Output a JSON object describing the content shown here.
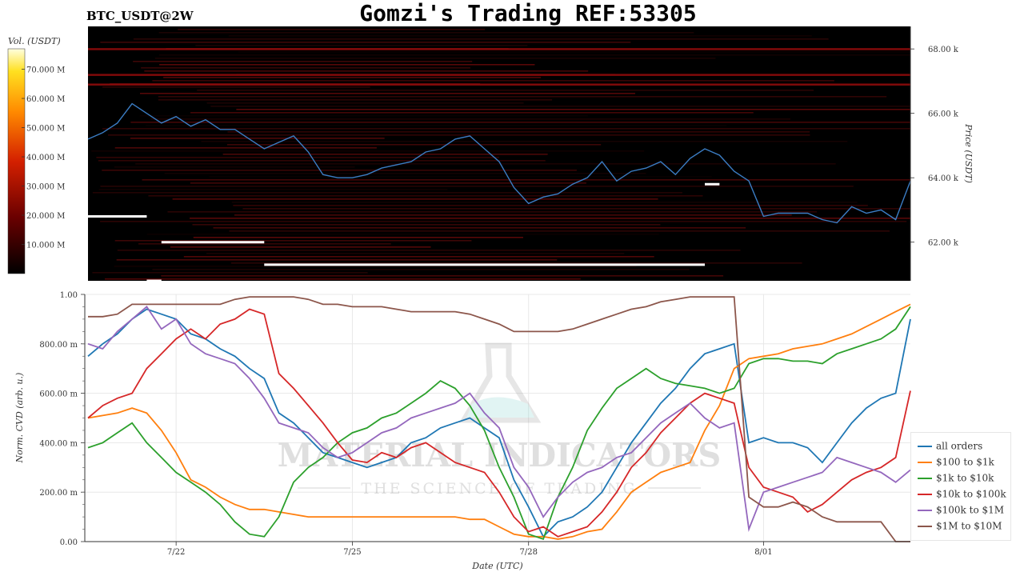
{
  "header": {
    "title": "Gomzi's Trading REF:53305",
    "symbol": "BTC_USDT@2W"
  },
  "watermark": {
    "line1": "MATERIAL INDICATORS",
    "line2": "THE SCIENCE OF TRADING"
  },
  "colors": {
    "price_line": "#3b7dc4",
    "heatmap_bg": "#000000",
    "wall": "#ffffff"
  },
  "chart_data": [
    {
      "type": "heatmap",
      "ylabel": "Price (USDT)",
      "ylim": [
        60800,
        68700
      ],
      "y_ticks": [
        {
          "value": 62000,
          "label": "62.00 k"
        },
        {
          "value": 64000,
          "label": "64.00 k"
        },
        {
          "value": 66000,
          "label": "66.00 k"
        },
        {
          "value": 68000,
          "label": "68.00 k"
        }
      ],
      "colorbar": {
        "label": "Vol. (USDT)",
        "range": [
          0,
          77000000
        ],
        "ticks": [
          {
            "value": 10000000,
            "label": "10.000 M"
          },
          {
            "value": 20000000,
            "label": "20.000 M"
          },
          {
            "value": 30000000,
            "label": "30.000 M"
          },
          {
            "value": 40000000,
            "label": "40.000 M"
          },
          {
            "value": 50000000,
            "label": "50.000 M"
          },
          {
            "value": 60000000,
            "label": "60.000 M"
          },
          {
            "value": 70000000,
            "label": "70.000 M"
          }
        ]
      },
      "price_series": {
        "x": [
          "07-20 12:00",
          "07-20 18:00",
          "07-21 00:00",
          "07-21 06:00",
          "07-21 12:00",
          "07-21 18:00",
          "07-22 00:00",
          "07-22 06:00",
          "07-22 12:00",
          "07-22 18:00",
          "07-23 00:00",
          "07-23 06:00",
          "07-23 12:00",
          "07-23 18:00",
          "07-24 00:00",
          "07-24 06:00",
          "07-24 12:00",
          "07-24 18:00",
          "07-25 00:00",
          "07-25 06:00",
          "07-25 12:00",
          "07-25 18:00",
          "07-26 00:00",
          "07-26 06:00",
          "07-26 12:00",
          "07-26 18:00",
          "07-27 00:00",
          "07-27 06:00",
          "07-27 12:00",
          "07-27 18:00",
          "07-28 00:00",
          "07-28 06:00",
          "07-28 12:00",
          "07-28 18:00",
          "07-29 00:00",
          "07-29 06:00",
          "07-29 12:00",
          "07-29 18:00",
          "07-30 00:00",
          "07-30 06:00",
          "07-30 12:00",
          "07-30 18:00",
          "07-31 00:00",
          "07-31 06:00",
          "07-31 12:00",
          "07-31 18:00",
          "08-01 00:00",
          "08-01 06:00",
          "08-01 12:00",
          "08-01 18:00",
          "08-02 00:00",
          "08-02 06:00",
          "08-02 12:00",
          "08-02 18:00",
          "08-03 00:00",
          "08-03 06:00",
          "08-03 12:00"
        ],
        "y": [
          65200,
          65400,
          65700,
          66300,
          66000,
          65700,
          65900,
          65600,
          65800,
          65500,
          65500,
          65200,
          64900,
          65100,
          65300,
          64800,
          64100,
          64000,
          64000,
          64100,
          64300,
          64400,
          64500,
          64800,
          64900,
          65200,
          65300,
          64900,
          64500,
          63700,
          63200,
          63400,
          63500,
          63800,
          64000,
          64500,
          63900,
          64200,
          64300,
          64500,
          64100,
          64600,
          64900,
          64700,
          64200,
          63900,
          62800,
          62900,
          62900,
          62900,
          62700,
          62600,
          63100,
          62900,
          63000,
          62700,
          63900
        ]
      },
      "walls": [
        {
          "start": "07-20 12:00",
          "end": "07-21 12:00",
          "price": 62800
        },
        {
          "start": "07-21 12:00",
          "end": "07-21 18:00",
          "price": 60800
        },
        {
          "start": "07-21 18:00",
          "end": "07-23 12:00",
          "price": 62000
        },
        {
          "start": "07-23 12:00",
          "end": "07-31 00:00",
          "price": 61300
        },
        {
          "start": "07-31 00:00",
          "end": "07-31 06:00",
          "price": 63800
        }
      ]
    },
    {
      "type": "line",
      "xlabel": "Date (UTC)",
      "ylabel": "Norm. CVD (arb. u.)",
      "ylim": [
        0,
        1
      ],
      "y_ticks": [
        {
          "value": 0,
          "label": "0.00"
        },
        {
          "value": 0.2,
          "label": "200.00 m"
        },
        {
          "value": 0.4,
          "label": "400.00 m"
        },
        {
          "value": 0.6,
          "label": "600.00 m"
        },
        {
          "value": 0.8,
          "label": "800.00 m"
        },
        {
          "value": 1,
          "label": "1.00"
        }
      ],
      "x_ticks": [
        {
          "value": "07-22 00:00",
          "label": "7/22"
        },
        {
          "value": "07-25 00:00",
          "label": "7/25"
        },
        {
          "value": "07-28 00:00",
          "label": "7/28"
        },
        {
          "value": "08-01 00:00",
          "label": "8/01"
        }
      ],
      "series": [
        {
          "name": "all orders",
          "color": "#1f77b4",
          "y": [
            0.75,
            0.8,
            0.84,
            0.9,
            0.94,
            0.92,
            0.9,
            0.84,
            0.82,
            0.78,
            0.75,
            0.7,
            0.66,
            0.52,
            0.48,
            0.42,
            0.36,
            0.34,
            0.32,
            0.3,
            0.32,
            0.34,
            0.4,
            0.42,
            0.46,
            0.48,
            0.5,
            0.46,
            0.42,
            0.25,
            0.14,
            0.02,
            0.08,
            0.1,
            0.14,
            0.2,
            0.3,
            0.4,
            0.48,
            0.56,
            0.62,
            0.7,
            0.76,
            0.78,
            0.8,
            0.4,
            0.42,
            0.4,
            0.4,
            0.38,
            0.32,
            0.4,
            0.48,
            0.54,
            0.58,
            0.6,
            0.9
          ]
        },
        {
          "name": "$100 to $1k",
          "color": "#ff7f0e",
          "y": [
            0.5,
            0.51,
            0.52,
            0.54,
            0.52,
            0.45,
            0.36,
            0.25,
            0.22,
            0.18,
            0.15,
            0.13,
            0.13,
            0.12,
            0.11,
            0.1,
            0.1,
            0.1,
            0.1,
            0.1,
            0.1,
            0.1,
            0.1,
            0.1,
            0.1,
            0.1,
            0.09,
            0.09,
            0.06,
            0.03,
            0.02,
            0.02,
            0.01,
            0.02,
            0.04,
            0.05,
            0.12,
            0.2,
            0.24,
            0.28,
            0.3,
            0.32,
            0.45,
            0.55,
            0.7,
            0.74,
            0.75,
            0.76,
            0.78,
            0.79,
            0.8,
            0.82,
            0.84,
            0.87,
            0.9,
            0.93,
            0.96
          ]
        },
        {
          "name": "$1k to $10k",
          "color": "#2ca02c",
          "y": [
            0.38,
            0.4,
            0.44,
            0.48,
            0.4,
            0.34,
            0.28,
            0.24,
            0.2,
            0.15,
            0.08,
            0.03,
            0.02,
            0.1,
            0.24,
            0.3,
            0.34,
            0.4,
            0.44,
            0.46,
            0.5,
            0.52,
            0.56,
            0.6,
            0.65,
            0.62,
            0.55,
            0.45,
            0.3,
            0.18,
            0.03,
            0.01,
            0.18,
            0.3,
            0.45,
            0.54,
            0.62,
            0.66,
            0.7,
            0.66,
            0.64,
            0.63,
            0.62,
            0.6,
            0.62,
            0.72,
            0.74,
            0.74,
            0.73,
            0.73,
            0.72,
            0.76,
            0.78,
            0.8,
            0.82,
            0.86,
            0.95
          ]
        },
        {
          "name": "$10k to $100k",
          "color": "#d62728",
          "y": [
            0.5,
            0.55,
            0.58,
            0.6,
            0.7,
            0.76,
            0.82,
            0.86,
            0.82,
            0.88,
            0.9,
            0.94,
            0.92,
            0.68,
            0.62,
            0.55,
            0.48,
            0.4,
            0.33,
            0.32,
            0.36,
            0.34,
            0.38,
            0.4,
            0.36,
            0.32,
            0.3,
            0.28,
            0.2,
            0.1,
            0.04,
            0.06,
            0.02,
            0.04,
            0.06,
            0.12,
            0.2,
            0.3,
            0.36,
            0.44,
            0.5,
            0.56,
            0.6,
            0.58,
            0.56,
            0.3,
            0.22,
            0.2,
            0.18,
            0.12,
            0.15,
            0.2,
            0.25,
            0.28,
            0.3,
            0.34,
            0.61
          ]
        },
        {
          "name": "$100k to $1M",
          "color": "#9467bd",
          "y": [
            0.8,
            0.78,
            0.85,
            0.9,
            0.95,
            0.86,
            0.9,
            0.8,
            0.76,
            0.74,
            0.72,
            0.66,
            0.58,
            0.48,
            0.46,
            0.44,
            0.38,
            0.34,
            0.36,
            0.4,
            0.44,
            0.46,
            0.5,
            0.52,
            0.54,
            0.56,
            0.6,
            0.52,
            0.46,
            0.3,
            0.22,
            0.1,
            0.18,
            0.24,
            0.28,
            0.3,
            0.34,
            0.36,
            0.42,
            0.48,
            0.52,
            0.56,
            0.5,
            0.46,
            0.48,
            0.05,
            0.2,
            0.22,
            0.24,
            0.26,
            0.28,
            0.34,
            0.32,
            0.3,
            0.28,
            0.24,
            0.29
          ]
        },
        {
          "name": "$1M to $10M",
          "color": "#8c564b",
          "y": [
            0.91,
            0.91,
            0.92,
            0.96,
            0.96,
            0.96,
            0.96,
            0.96,
            0.96,
            0.96,
            0.98,
            0.99,
            0.99,
            0.99,
            0.99,
            0.98,
            0.96,
            0.96,
            0.95,
            0.95,
            0.95,
            0.94,
            0.93,
            0.93,
            0.93,
            0.93,
            0.92,
            0.9,
            0.88,
            0.85,
            0.85,
            0.85,
            0.85,
            0.86,
            0.88,
            0.9,
            0.92,
            0.94,
            0.95,
            0.97,
            0.98,
            0.99,
            0.99,
            0.99,
            0.99,
            0.18,
            0.14,
            0.14,
            0.16,
            0.14,
            0.1,
            0.08,
            0.08,
            0.08,
            0.08,
            0.0,
            0.0
          ]
        }
      ]
    }
  ]
}
